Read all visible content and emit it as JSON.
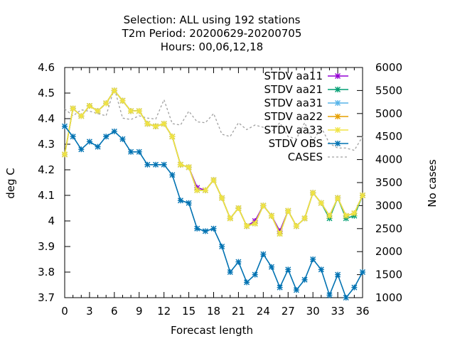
{
  "chart_data": {
    "type": "line",
    "title_lines": [
      "Selection: ALL using   192 stations",
      "T2m   Period: 20200629-20200705",
      "Hours:  00,06,12,18"
    ],
    "xlabel": "Forecast length",
    "ylabel": "deg C",
    "y2label": "No cases",
    "xlim": [
      0,
      36
    ],
    "ylim": [
      3.7,
      4.6
    ],
    "y2lim": [
      1000,
      6000
    ],
    "xticks": [
      "0",
      "3",
      "6",
      "9",
      "12",
      "15",
      "18",
      "21",
      "24",
      "27",
      "30",
      "33",
      "36"
    ],
    "yticks": [
      "3.7",
      "3.8",
      "3.9",
      "4",
      "4.1",
      "4.2",
      "4.3",
      "4.4",
      "4.5",
      "4.6"
    ],
    "y2ticks": [
      "1000",
      "1500",
      "2000",
      "2500",
      "3000",
      "3500",
      "4000",
      "4500",
      "5000",
      "5500",
      "6000"
    ],
    "grid": false,
    "legend_position": "top-right",
    "x": [
      0,
      1,
      2,
      3,
      4,
      5,
      6,
      7,
      8,
      9,
      10,
      11,
      12,
      13,
      14,
      15,
      16,
      17,
      18,
      19,
      20,
      21,
      22,
      23,
      24,
      25,
      26,
      27,
      28,
      29,
      30,
      31,
      32,
      33,
      34,
      35,
      36
    ],
    "series": [
      {
        "name": "STDV aa11",
        "color": "#9400d3",
        "marker": "x",
        "axis": "y",
        "values": [
          4.26,
          4.44,
          4.41,
          4.45,
          4.43,
          4.46,
          4.51,
          4.47,
          4.43,
          4.43,
          4.38,
          4.37,
          4.38,
          4.33,
          4.22,
          4.21,
          4.13,
          4.12,
          4.16,
          4.09,
          4.01,
          4.05,
          3.98,
          4.0,
          4.06,
          4.02,
          3.96,
          4.04,
          3.98,
          4.01,
          4.11,
          4.07,
          4.02,
          4.09,
          4.02,
          4.03,
          4.1
        ]
      },
      {
        "name": "STDV aa21",
        "color": "#009e73",
        "marker": "x",
        "axis": "y",
        "values": [
          4.26,
          4.44,
          4.41,
          4.45,
          4.43,
          4.46,
          4.51,
          4.47,
          4.43,
          4.43,
          4.38,
          4.37,
          4.38,
          4.33,
          4.22,
          4.21,
          4.12,
          4.12,
          4.16,
          4.09,
          4.01,
          4.05,
          3.98,
          3.99,
          4.06,
          4.02,
          3.95,
          4.04,
          3.98,
          4.01,
          4.11,
          4.07,
          4.01,
          4.09,
          4.01,
          4.02,
          4.1
        ]
      },
      {
        "name": "STDV aa31",
        "color": "#56b4e9",
        "marker": "x",
        "axis": "y",
        "values": [
          4.26,
          4.44,
          4.41,
          4.45,
          4.43,
          4.46,
          4.51,
          4.47,
          4.43,
          4.43,
          4.38,
          4.37,
          4.38,
          4.33,
          4.22,
          4.21,
          4.12,
          4.12,
          4.16,
          4.09,
          4.01,
          4.05,
          3.98,
          3.99,
          4.06,
          4.02,
          3.95,
          4.04,
          3.98,
          4.01,
          4.11,
          4.07,
          4.02,
          4.09,
          4.02,
          4.03,
          4.1
        ]
      },
      {
        "name": "STDV aa22",
        "color": "#e69f00",
        "marker": "x",
        "axis": "y",
        "values": [
          4.26,
          4.44,
          4.41,
          4.45,
          4.43,
          4.46,
          4.51,
          4.47,
          4.43,
          4.43,
          4.38,
          4.37,
          4.38,
          4.33,
          4.22,
          4.21,
          4.12,
          4.12,
          4.16,
          4.09,
          4.01,
          4.05,
          3.98,
          3.99,
          4.06,
          4.02,
          3.95,
          4.04,
          3.98,
          4.01,
          4.11,
          4.07,
          4.02,
          4.09,
          4.02,
          4.03,
          4.1
        ]
      },
      {
        "name": "STDV aa33",
        "color": "#f0e442",
        "marker": "x",
        "axis": "y",
        "values": [
          4.26,
          4.44,
          4.41,
          4.45,
          4.43,
          4.46,
          4.51,
          4.47,
          4.43,
          4.43,
          4.38,
          4.37,
          4.38,
          4.33,
          4.22,
          4.21,
          4.12,
          4.12,
          4.16,
          4.09,
          4.01,
          4.05,
          3.98,
          3.99,
          4.06,
          4.02,
          3.95,
          4.04,
          3.98,
          4.01,
          4.11,
          4.07,
          4.02,
          4.09,
          4.02,
          4.03,
          4.1
        ]
      },
      {
        "name": "STDV OBS",
        "color": "#0072b2",
        "marker": "x",
        "axis": "y",
        "values": [
          4.37,
          4.33,
          4.28,
          4.31,
          4.29,
          4.33,
          4.35,
          4.32,
          4.27,
          4.27,
          4.22,
          4.22,
          4.22,
          4.18,
          4.08,
          4.07,
          3.97,
          3.96,
          3.97,
          3.9,
          3.8,
          3.84,
          3.76,
          3.79,
          3.87,
          3.82,
          3.74,
          3.81,
          3.73,
          3.77,
          3.85,
          3.81,
          3.71,
          3.79,
          3.7,
          3.74,
          3.8
        ]
      },
      {
        "name": "CASES",
        "color": "#a0a0a0",
        "marker": "none",
        "dashed": true,
        "axis": "y2",
        "values": [
          5100,
          4950,
          5080,
          5050,
          5000,
          4950,
          5550,
          4900,
          4870,
          4950,
          4900,
          4880,
          5300,
          4780,
          4750,
          5050,
          4820,
          4800,
          5000,
          4550,
          4500,
          4800,
          4650,
          4750,
          4700,
          4600,
          4800,
          4500,
          4450,
          4800,
          4400,
          4700,
          4350,
          4250,
          4250,
          4200,
          4500
        ]
      }
    ]
  }
}
